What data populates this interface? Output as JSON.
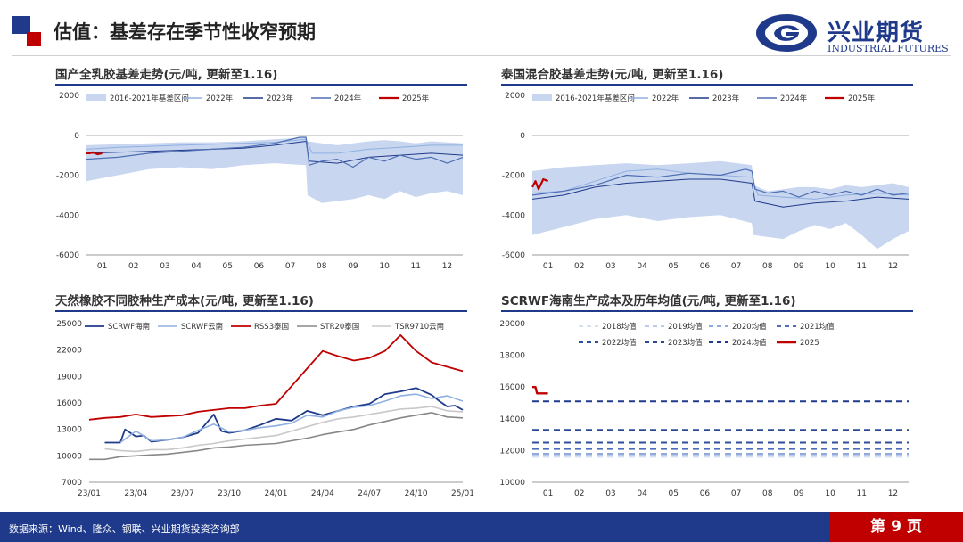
{
  "page": {
    "title": "估值：基差存在季节性收窄预期",
    "logo": {
      "cn": "兴业期货",
      "en": "INDUSTRIAL FUTURES"
    },
    "source": "数据来源：Wind、隆众、钢联、兴业期货投资咨询部",
    "page_number": "第 9 页"
  },
  "colors": {
    "navy": "#1f3a8a",
    "red": "#c00000",
    "band": "#c9d6f0",
    "lightblue": "#8fb0e0",
    "midblue": "#4f6fb3",
    "gray": "#888888",
    "lightgray": "#c8c8c8"
  },
  "chart_data": [
    {
      "id": "c1",
      "type": "line",
      "title": "国产全乳胶基差走势(元/吨, 更新至1.16)",
      "x_ticks": [
        "01",
        "02",
        "03",
        "04",
        "05",
        "06",
        "07",
        "08",
        "09",
        "10",
        "11",
        "12"
      ],
      "ylim": [
        -6000,
        2000
      ],
      "y_ticks": [
        2000,
        0,
        -2000,
        -4000,
        -6000
      ],
      "legend": [
        "2016-2021年基差区间",
        "2022年",
        "2023年",
        "2024年",
        "2025年"
      ],
      "band": {
        "name": "2016-2021年基差区间",
        "x": [
          0,
          1,
          2,
          3,
          4,
          5,
          6,
          7,
          7.05,
          7.5,
          8,
          8.5,
          9,
          9.5,
          10,
          10.5,
          11,
          11.5,
          12
        ],
        "upper": [
          -500,
          -450,
          -400,
          -350,
          -350,
          -300,
          -200,
          -100,
          -300,
          -400,
          -500,
          -400,
          -300,
          -250,
          -300,
          -400,
          -300,
          -350,
          -400
        ],
        "lower": [
          -2300,
          -2000,
          -1700,
          -1600,
          -1700,
          -1500,
          -1400,
          -1500,
          -3000,
          -3400,
          -3300,
          -3200,
          -3000,
          -3200,
          -2800,
          -3100,
          -2900,
          -2800,
          -3000
        ]
      },
      "series": [
        {
          "name": "2022年",
          "x": [
            0,
            1,
            2,
            3,
            4,
            5,
            6,
            7,
            7.2,
            8,
            9,
            10,
            11,
            12
          ],
          "y": [
            -700,
            -600,
            -550,
            -500,
            -450,
            -400,
            -350,
            -200,
            -900,
            -900,
            -700,
            -600,
            -500,
            -500
          ]
        },
        {
          "name": "2023年",
          "x": [
            0,
            1,
            2,
            3,
            4,
            5,
            6,
            7,
            7.1,
            8,
            9,
            10,
            11,
            12
          ],
          "y": [
            -900,
            -850,
            -800,
            -750,
            -700,
            -650,
            -500,
            -300,
            -1300,
            -1400,
            -1100,
            -1000,
            -900,
            -1000
          ]
        },
        {
          "name": "2024年",
          "x": [
            0,
            1,
            2,
            3,
            4,
            5,
            6,
            6.8,
            7,
            7.1,
            7.5,
            8,
            8.5,
            9,
            9.5,
            10,
            10.5,
            11,
            11.5,
            12
          ],
          "y": [
            -1200,
            -1100,
            -900,
            -800,
            -700,
            -600,
            -400,
            -100,
            -100,
            -1500,
            -1300,
            -1200,
            -1600,
            -1100,
            -1300,
            -1000,
            -1200,
            -1100,
            -1400,
            -1100
          ]
        },
        {
          "name": "2025年",
          "x": [
            0,
            0.1,
            0.2,
            0.35,
            0.5
          ],
          "y": [
            -900,
            -900,
            -850,
            -950,
            -900
          ]
        }
      ]
    },
    {
      "id": "c2",
      "type": "line",
      "title": "泰国混合胶基差走势(元/吨, 更新至1.16)",
      "x_ticks": [
        "01",
        "02",
        "03",
        "04",
        "05",
        "06",
        "07",
        "08",
        "09",
        "10",
        "11",
        "12"
      ],
      "ylim": [
        -6000,
        2000
      ],
      "y_ticks": [
        2000,
        0,
        -2000,
        -4000,
        -6000
      ],
      "legend": [
        "2016-2021年基差区间",
        "2022年",
        "2023年",
        "2024年",
        "2025年"
      ],
      "band": {
        "name": "2016-2021年基差区间",
        "x": [
          0,
          1,
          2,
          3,
          4,
          5,
          6,
          7,
          7.05,
          7.5,
          8,
          8.5,
          9,
          9.5,
          10,
          10.5,
          11,
          11.5,
          12
        ],
        "upper": [
          -1800,
          -1600,
          -1500,
          -1400,
          -1500,
          -1400,
          -1300,
          -1500,
          -2500,
          -2800,
          -2700,
          -2600,
          -2600,
          -2700,
          -2500,
          -2600,
          -2500,
          -2400,
          -2600
        ],
        "lower": [
          -5000,
          -4600,
          -4200,
          -4000,
          -4300,
          -4100,
          -4000,
          -4400,
          -5000,
          -5100,
          -5200,
          -4800,
          -4500,
          -4700,
          -4400,
          -5000,
          -5700,
          -5200,
          -4800
        ]
      },
      "series": [
        {
          "name": "2022年",
          "x": [
            0,
            1,
            2,
            3,
            4,
            5,
            6,
            7,
            7.2,
            8,
            9,
            10,
            11,
            12
          ],
          "y": [
            -2900,
            -2800,
            -2300,
            -1800,
            -1700,
            -1900,
            -2000,
            -2100,
            -3000,
            -3100,
            -3200,
            -3000,
            -2900,
            -3000
          ]
        },
        {
          "name": "2023年",
          "x": [
            0,
            1,
            2,
            3,
            4,
            5,
            6,
            7,
            7.1,
            8,
            9,
            10,
            11,
            12
          ],
          "y": [
            -3200,
            -3000,
            -2600,
            -2400,
            -2300,
            -2200,
            -2200,
            -2400,
            -3300,
            -3600,
            -3400,
            -3300,
            -3100,
            -3200
          ]
        },
        {
          "name": "2024年",
          "x": [
            0,
            1,
            2,
            3,
            4,
            5,
            6,
            6.8,
            7,
            7.1,
            7.5,
            8,
            8.5,
            9,
            9.5,
            10,
            10.5,
            11,
            11.5,
            12
          ],
          "y": [
            -3000,
            -2800,
            -2500,
            -2000,
            -2100,
            -1900,
            -2000,
            -1700,
            -1800,
            -2700,
            -2900,
            -2800,
            -3100,
            -2800,
            -3000,
            -2800,
            -3000,
            -2700,
            -3000,
            -2900
          ]
        },
        {
          "name": "2025年",
          "x": [
            0,
            0.1,
            0.2,
            0.35,
            0.5
          ],
          "y": [
            -2600,
            -2300,
            -2700,
            -2200,
            -2300
          ]
        }
      ]
    },
    {
      "id": "c3",
      "type": "line",
      "title": "天然橡胶不同胶种生产成本(元/吨, 更新至1.16)",
      "x_ticks": [
        "23/01",
        "23/04",
        "23/07",
        "23/10",
        "24/01",
        "24/04",
        "24/07",
        "24/10",
        "25/01"
      ],
      "ylim": [
        7000,
        25000
      ],
      "y_ticks": [
        25000,
        22000,
        19000,
        16000,
        13000,
        10000,
        7000
      ],
      "legend": [
        "SCRWF海南",
        "SCRWF云南",
        "RSS3泰国",
        "STR20泰国",
        "TSR9710云南"
      ],
      "series": [
        {
          "name": "SCRWF海南",
          "x": [
            1,
            2,
            2.3,
            3,
            3.5,
            4,
            5,
            6,
            7,
            8,
            8.5,
            9,
            10,
            11,
            12,
            13,
            14,
            15,
            16,
            17,
            18,
            19,
            20,
            21,
            22,
            22.5,
            23,
            23.5,
            24
          ],
          "y": [
            11500,
            11500,
            13000,
            12200,
            12300,
            11600,
            11800,
            12100,
            12600,
            14700,
            12800,
            12600,
            12900,
            13500,
            14200,
            14000,
            15100,
            14600,
            15100,
            15600,
            15900,
            17000,
            17300,
            17700,
            16900,
            16200,
            15600,
            15700,
            15200
          ]
        },
        {
          "name": "SCRWF云南",
          "x": [
            2,
            3,
            4,
            5,
            6,
            7,
            8,
            9,
            10,
            11,
            12,
            13,
            14,
            15,
            16,
            17,
            18,
            19,
            20,
            21,
            22,
            23,
            24
          ],
          "y": [
            11500,
            12800,
            11700,
            11800,
            12100,
            12900,
            13600,
            12700,
            12900,
            13200,
            13400,
            13700,
            14600,
            14400,
            15100,
            15500,
            15700,
            16200,
            16800,
            17000,
            16500,
            16800,
            16200
          ]
        },
        {
          "name": "RSS3泰国",
          "x": [
            0,
            1,
            2,
            3,
            4,
            5,
            6,
            7,
            8,
            9,
            10,
            11,
            12,
            13,
            14,
            15,
            16,
            17,
            18,
            19,
            20,
            21,
            22,
            23,
            24
          ],
          "y": [
            14100,
            14300,
            14400,
            14700,
            14400,
            14500,
            14600,
            15000,
            15200,
            15400,
            15400,
            15700,
            15900,
            17900,
            19900,
            21900,
            21300,
            20800,
            21100,
            21900,
            23700,
            21900,
            20600,
            20100,
            19600
          ]
        },
        {
          "name": "STR20泰国",
          "x": [
            0,
            1,
            2,
            3,
            4,
            5,
            6,
            7,
            8,
            9,
            10,
            11,
            12,
            13,
            14,
            15,
            16,
            17,
            18,
            19,
            20,
            21,
            22,
            23,
            24
          ],
          "y": [
            9600,
            9600,
            9900,
            10000,
            10100,
            10200,
            10400,
            10600,
            10900,
            11000,
            11200,
            11300,
            11400,
            11700,
            12000,
            12400,
            12700,
            13000,
            13500,
            13900,
            14300,
            14600,
            14900,
            14400,
            14300
          ]
        },
        {
          "name": "TSR9710云南",
          "x": [
            1,
            2,
            3,
            4,
            5,
            6,
            7,
            8,
            9,
            10,
            11,
            12,
            13,
            14,
            15,
            16,
            17,
            18,
            19,
            20,
            21,
            22,
            23,
            24
          ],
          "y": [
            10800,
            10600,
            10500,
            10700,
            10700,
            10900,
            11200,
            11400,
            11700,
            11900,
            12100,
            12300,
            12800,
            13300,
            13800,
            14200,
            14400,
            14700,
            15000,
            15300,
            15400,
            15600,
            15100,
            15000
          ]
        }
      ]
    },
    {
      "id": "c4",
      "type": "line",
      "title": "SCRWF海南生产成本及历年均值(元/吨, 更新至1.16)",
      "x_ticks": [
        "01",
        "02",
        "03",
        "04",
        "05",
        "06",
        "07",
        "08",
        "09",
        "10",
        "11",
        "12"
      ],
      "ylim": [
        10000,
        20000
      ],
      "y_ticks": [
        20000,
        18000,
        16000,
        14000,
        12000,
        10000
      ],
      "legend": [
        "2018均值",
        "2019均值",
        "2020均值",
        "2021均值",
        "2022均值",
        "2023均值",
        "2024均值",
        "2025"
      ],
      "series": [
        {
          "name": "2018均值",
          "x": [
            0,
            12
          ],
          "y": [
            11600,
            11600
          ]
        },
        {
          "name": "2019均值",
          "x": [
            0,
            12
          ],
          "y": [
            11700,
            11700
          ]
        },
        {
          "name": "2020均值",
          "x": [
            0,
            12
          ],
          "y": [
            11800,
            11800
          ]
        },
        {
          "name": "2021均值",
          "x": [
            0,
            12
          ],
          "y": [
            12100,
            12100
          ]
        },
        {
          "name": "2022均值",
          "x": [
            0,
            12
          ],
          "y": [
            12500,
            12500
          ]
        },
        {
          "name": "2023均值",
          "x": [
            0,
            12
          ],
          "y": [
            13300,
            13300
          ]
        },
        {
          "name": "2024均值",
          "x": [
            0,
            12
          ],
          "y": [
            15100,
            15100
          ]
        },
        {
          "name": "2025",
          "x": [
            0,
            0.1,
            0.15,
            0.5
          ],
          "y": [
            16000,
            16000,
            15600,
            15600
          ]
        }
      ]
    }
  ]
}
